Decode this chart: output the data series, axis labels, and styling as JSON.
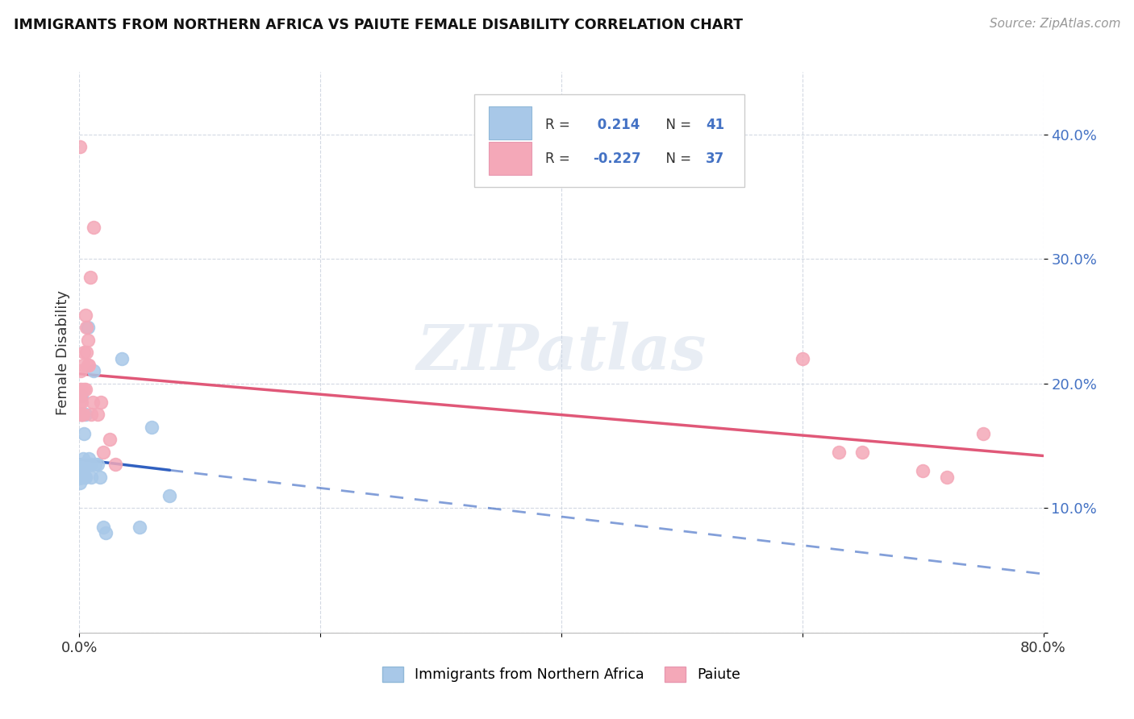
{
  "title": "IMMIGRANTS FROM NORTHERN AFRICA VS PAIUTE FEMALE DISABILITY CORRELATION CHART",
  "source": "Source: ZipAtlas.com",
  "ylabel": "Female Disability",
  "legend_labels": [
    "Immigrants from Northern Africa",
    "Paiute"
  ],
  "blue_R": "0.214",
  "blue_N": "41",
  "pink_R": "-0.227",
  "pink_N": "37",
  "blue_color": "#a8c8e8",
  "pink_color": "#f4a8b8",
  "blue_line_color": "#3060c0",
  "pink_line_color": "#e05878",
  "xlim": [
    0.0,
    0.8
  ],
  "ylim": [
    0.0,
    0.45
  ],
  "blue_x": [
    0.0002,
    0.0003,
    0.0004,
    0.0005,
    0.0006,
    0.0007,
    0.0008,
    0.0009,
    0.001,
    0.0012,
    0.0013,
    0.0014,
    0.0015,
    0.0016,
    0.0018,
    0.002,
    0.002,
    0.0022,
    0.0025,
    0.003,
    0.003,
    0.003,
    0.004,
    0.004,
    0.005,
    0.005,
    0.006,
    0.007,
    0.008,
    0.009,
    0.01,
    0.012,
    0.013,
    0.015,
    0.017,
    0.02,
    0.022,
    0.035,
    0.05,
    0.06,
    0.075
  ],
  "blue_y": [
    0.13,
    0.125,
    0.13,
    0.12,
    0.13,
    0.125,
    0.13,
    0.125,
    0.125,
    0.13,
    0.125,
    0.13,
    0.125,
    0.13,
    0.125,
    0.19,
    0.13,
    0.135,
    0.175,
    0.14,
    0.13,
    0.135,
    0.16,
    0.125,
    0.175,
    0.125,
    0.135,
    0.245,
    0.14,
    0.135,
    0.125,
    0.21,
    0.135,
    0.135,
    0.125,
    0.085,
    0.08,
    0.22,
    0.085,
    0.165,
    0.11
  ],
  "pink_x": [
    0.0003,
    0.0005,
    0.0007,
    0.0009,
    0.001,
    0.0012,
    0.0014,
    0.0016,
    0.0018,
    0.002,
    0.002,
    0.003,
    0.003,
    0.004,
    0.004,
    0.005,
    0.005,
    0.006,
    0.006,
    0.007,
    0.007,
    0.008,
    0.009,
    0.01,
    0.011,
    0.012,
    0.015,
    0.018,
    0.02,
    0.025,
    0.03,
    0.6,
    0.63,
    0.65,
    0.7,
    0.72,
    0.75
  ],
  "pink_y": [
    0.39,
    0.195,
    0.185,
    0.175,
    0.21,
    0.19,
    0.175,
    0.185,
    0.175,
    0.175,
    0.195,
    0.215,
    0.175,
    0.225,
    0.195,
    0.255,
    0.195,
    0.245,
    0.225,
    0.235,
    0.215,
    0.215,
    0.285,
    0.175,
    0.185,
    0.325,
    0.175,
    0.185,
    0.145,
    0.155,
    0.135,
    0.22,
    0.145,
    0.145,
    0.13,
    0.125,
    0.16
  ],
  "ytick_values": [
    0.0,
    0.1,
    0.2,
    0.3,
    0.4
  ],
  "xtick_values": [
    0.0,
    0.2,
    0.4,
    0.6,
    0.8
  ],
  "xtick_labels": [
    "0.0%",
    "",
    "",
    "",
    "80.0%"
  ]
}
